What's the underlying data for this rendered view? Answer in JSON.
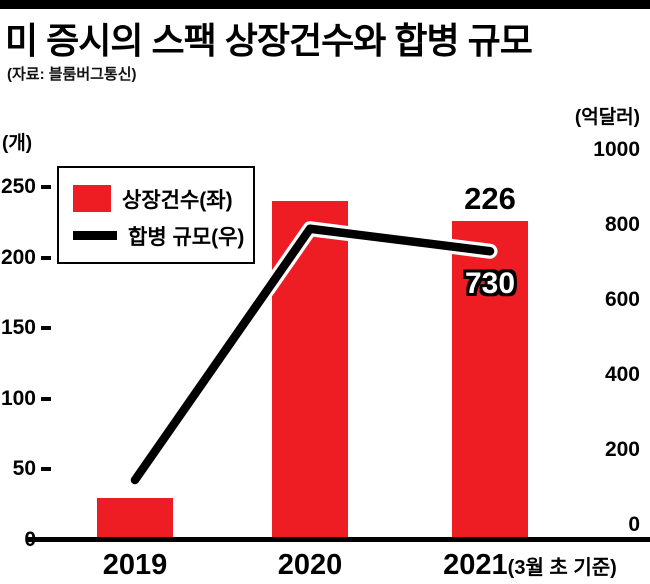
{
  "header": {
    "title": "미 증시의 스팩 상장건수와 합병 규모",
    "source": "(자료: 블룸버그통신)"
  },
  "chart_data": {
    "type": "bar",
    "subtype": "bar+line combo, dual axis",
    "categories": [
      "2019",
      "2020",
      "2021"
    ],
    "x_suffix": "(3월 초 기준)",
    "series": [
      {
        "name": "상장건수(좌)",
        "type": "bar",
        "axis": "left",
        "color": "#ee1c23",
        "values": [
          30,
          240,
          226
        ]
      },
      {
        "name": "합병 규모(우)",
        "type": "line",
        "axis": "right",
        "color": "#000000",
        "values": [
          120,
          790,
          730
        ]
      }
    ],
    "left_axis": {
      "unit": "(개)",
      "ticks": [
        0,
        50,
        100,
        150,
        200,
        250
      ],
      "range": [
        0,
        250
      ]
    },
    "right_axis": {
      "unit": "(억달러)",
      "ticks": [
        0,
        200,
        400,
        600,
        800,
        1000
      ],
      "range": [
        0,
        1000
      ]
    },
    "data_labels": [
      {
        "series": 0,
        "index": 2,
        "text": "226"
      },
      {
        "series": 1,
        "index": 2,
        "text": "730"
      }
    ],
    "legend_position": "top-left",
    "grid": false
  }
}
